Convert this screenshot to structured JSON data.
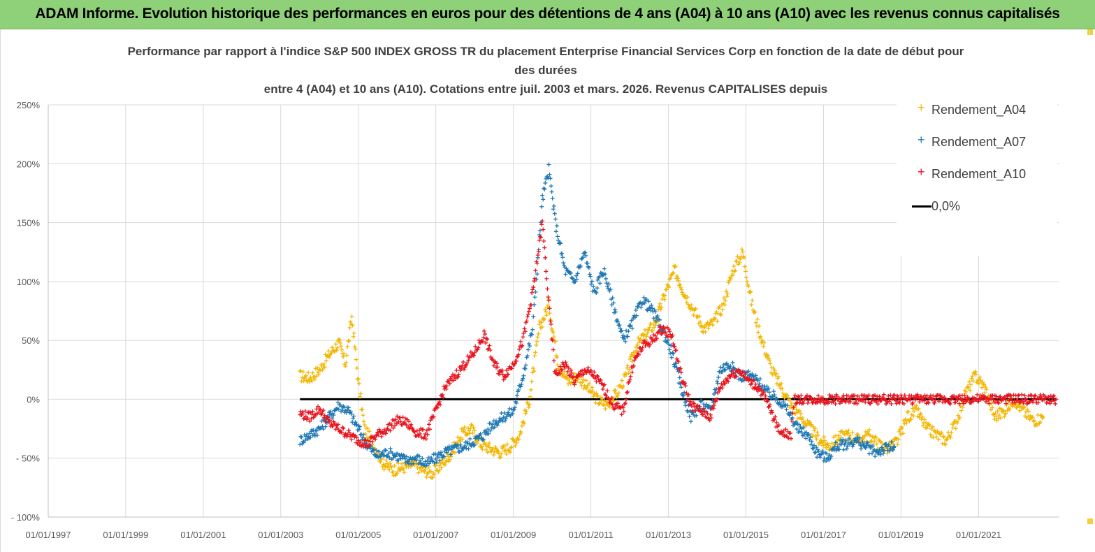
{
  "banner": {
    "title": "ADAM Informe. Evolution historique des performances en euros pour des détentions de 4 ans (A04) à 10 ans (A10) avec les revenus connus capitalisés"
  },
  "chart_data": {
    "type": "scatter",
    "title_lines": [
      "Performance par rapport à l'indice S&P 500 INDEX GROSS TR  du placement Enterprise Financial Services Corp en fonction de la date de début pour",
      "des durées",
      "entre 4 (A04) et 10 ans (A10). Cotations entre juil. 2003 et mars. 2026. Revenus CAPITALISES depuis"
    ],
    "xlabel": "",
    "ylabel": "",
    "x_range": [
      "1997-01-01",
      "2023-02-01"
    ],
    "x_ticks": [
      "01/01/1997",
      "01/01/1999",
      "01/01/2001",
      "01/01/2003",
      "01/01/2005",
      "01/01/2007",
      "01/01/2009",
      "01/01/2011",
      "01/01/2013",
      "01/01/2015",
      "01/01/2017",
      "01/01/2019",
      "01/01/2021"
    ],
    "ylim": [
      -100,
      250
    ],
    "y_ticks": [
      {
        "value": 250,
        "label": "250%"
      },
      {
        "value": 200,
        "label": "200%"
      },
      {
        "value": 150,
        "label": "150%"
      },
      {
        "value": 100,
        "label": "100%"
      },
      {
        "value": 50,
        "label": "50%"
      },
      {
        "value": 0,
        "label": "0%"
      },
      {
        "value": -50,
        "label": "- 50%"
      },
      {
        "value": -100,
        "label": "- 100%"
      }
    ],
    "grid": true,
    "legend_position": "top-right",
    "series": [
      {
        "name": "Rendement_A04",
        "color": "#f2b705",
        "marker": "plus",
        "points": [
          [
            "2003-07-01",
            20
          ],
          [
            "2003-10-01",
            18
          ],
          [
            "2004-01-01",
            25
          ],
          [
            "2004-04-01",
            38
          ],
          [
            "2004-07-01",
            48
          ],
          [
            "2004-09-01",
            30
          ],
          [
            "2004-11-01",
            70
          ],
          [
            "2005-01-01",
            15
          ],
          [
            "2005-03-01",
            -25
          ],
          [
            "2005-06-01",
            -40
          ],
          [
            "2005-09-01",
            -55
          ],
          [
            "2005-12-01",
            -60
          ],
          [
            "2006-03-01",
            -58
          ],
          [
            "2006-06-01",
            -55
          ],
          [
            "2006-09-01",
            -60
          ],
          [
            "2006-12-01",
            -63
          ],
          [
            "2007-03-01",
            -55
          ],
          [
            "2007-06-01",
            -45
          ],
          [
            "2007-09-01",
            -30
          ],
          [
            "2007-12-01",
            -25
          ],
          [
            "2008-03-01",
            -38
          ],
          [
            "2008-06-01",
            -42
          ],
          [
            "2008-09-01",
            -45
          ],
          [
            "2008-12-01",
            -40
          ],
          [
            "2009-03-01",
            -30
          ],
          [
            "2009-06-01",
            0
          ],
          [
            "2009-09-01",
            60
          ],
          [
            "2009-12-01",
            80
          ],
          [
            "2010-03-01",
            30
          ],
          [
            "2010-06-01",
            15
          ],
          [
            "2010-09-01",
            20
          ],
          [
            "2010-12-01",
            10
          ],
          [
            "2011-03-01",
            0
          ],
          [
            "2011-06-01",
            -5
          ],
          [
            "2011-09-01",
            5
          ],
          [
            "2011-12-01",
            20
          ],
          [
            "2012-03-01",
            45
          ],
          [
            "2012-06-01",
            55
          ],
          [
            "2012-09-01",
            65
          ],
          [
            "2012-12-01",
            90
          ],
          [
            "2013-03-01",
            110
          ],
          [
            "2013-06-01",
            90
          ],
          [
            "2013-09-01",
            75
          ],
          [
            "2013-12-01",
            60
          ],
          [
            "2014-03-01",
            65
          ],
          [
            "2014-06-01",
            80
          ],
          [
            "2014-09-01",
            110
          ],
          [
            "2014-12-01",
            125
          ],
          [
            "2015-03-01",
            80
          ],
          [
            "2015-06-01",
            50
          ],
          [
            "2015-09-01",
            25
          ],
          [
            "2015-12-01",
            10
          ],
          [
            "2016-03-01",
            -5
          ],
          [
            "2016-06-01",
            -15
          ],
          [
            "2016-09-01",
            -25
          ],
          [
            "2016-12-01",
            -35
          ],
          [
            "2017-03-01",
            -40
          ],
          [
            "2017-06-01",
            -32
          ],
          [
            "2017-09-01",
            -30
          ],
          [
            "2017-12-01",
            -35
          ],
          [
            "2018-03-01",
            -30
          ],
          [
            "2018-06-01",
            -38
          ],
          [
            "2018-09-01",
            -42
          ],
          [
            "2018-12-01",
            -35
          ],
          [
            "2019-03-01",
            -15
          ],
          [
            "2019-06-01",
            -10
          ],
          [
            "2019-09-01",
            -25
          ],
          [
            "2019-12-01",
            -30
          ],
          [
            "2020-03-01",
            -35
          ],
          [
            "2020-06-01",
            -20
          ],
          [
            "2020-09-01",
            5
          ],
          [
            "2020-12-01",
            20
          ],
          [
            "2021-03-01",
            10
          ],
          [
            "2021-06-01",
            -15
          ],
          [
            "2021-09-01",
            -10
          ],
          [
            "2021-12-01",
            0
          ],
          [
            "2022-03-01",
            -10
          ],
          [
            "2022-06-01",
            -18
          ],
          [
            "2022-09-01",
            -15
          ]
        ]
      },
      {
        "name": "Rendement_A07",
        "color": "#1f78b4",
        "marker": "plus",
        "points": [
          [
            "2003-07-01",
            -35
          ],
          [
            "2003-10-01",
            -30
          ],
          [
            "2004-01-01",
            -25
          ],
          [
            "2004-04-01",
            -15
          ],
          [
            "2004-07-01",
            -5
          ],
          [
            "2004-10-01",
            -10
          ],
          [
            "2005-01-01",
            -25
          ],
          [
            "2005-04-01",
            -40
          ],
          [
            "2005-07-01",
            -48
          ],
          [
            "2005-10-01",
            -45
          ],
          [
            "2006-01-01",
            -48
          ],
          [
            "2006-04-01",
            -52
          ],
          [
            "2006-07-01",
            -50
          ],
          [
            "2006-10-01",
            -55
          ],
          [
            "2007-01-01",
            -50
          ],
          [
            "2007-04-01",
            -45
          ],
          [
            "2007-07-01",
            -42
          ],
          [
            "2007-10-01",
            -40
          ],
          [
            "2008-01-01",
            -35
          ],
          [
            "2008-04-01",
            -30
          ],
          [
            "2008-07-01",
            -20
          ],
          [
            "2008-10-01",
            -15
          ],
          [
            "2009-01-01",
            -10
          ],
          [
            "2009-04-01",
            20
          ],
          [
            "2009-07-01",
            60
          ],
          [
            "2009-10-01",
            170
          ],
          [
            "2009-12-01",
            195
          ],
          [
            "2010-02-01",
            150
          ],
          [
            "2010-05-01",
            110
          ],
          [
            "2010-08-01",
            100
          ],
          [
            "2010-11-01",
            125
          ],
          [
            "2011-02-01",
            90
          ],
          [
            "2011-05-01",
            110
          ],
          [
            "2011-08-01",
            80
          ],
          [
            "2011-11-01",
            50
          ],
          [
            "2012-02-01",
            65
          ],
          [
            "2012-05-01",
            85
          ],
          [
            "2012-08-01",
            75
          ],
          [
            "2012-11-01",
            60
          ],
          [
            "2013-02-01",
            40
          ],
          [
            "2013-05-01",
            10
          ],
          [
            "2013-08-01",
            -15
          ],
          [
            "2013-11-01",
            -5
          ],
          [
            "2014-02-01",
            -10
          ],
          [
            "2014-05-01",
            25
          ],
          [
            "2014-08-01",
            30
          ],
          [
            "2014-11-01",
            20
          ],
          [
            "2015-02-01",
            20
          ],
          [
            "2015-05-01",
            15
          ],
          [
            "2015-08-01",
            5
          ],
          [
            "2015-11-01",
            0
          ],
          [
            "2016-02-01",
            -10
          ],
          [
            "2016-05-01",
            -25
          ],
          [
            "2016-08-01",
            -30
          ],
          [
            "2016-11-01",
            -45
          ],
          [
            "2017-02-01",
            -50
          ],
          [
            "2017-05-01",
            -40
          ],
          [
            "2017-08-01",
            -38
          ],
          [
            "2017-11-01",
            -35
          ],
          [
            "2018-02-01",
            -40
          ],
          [
            "2018-05-01",
            -45
          ],
          [
            "2018-08-01",
            -42
          ],
          [
            "2018-11-01",
            -40
          ]
        ]
      },
      {
        "name": "Rendement_A10",
        "color": "#e8141e",
        "marker": "plus",
        "points": [
          [
            "2003-07-01",
            -12
          ],
          [
            "2003-10-01",
            -15
          ],
          [
            "2004-01-01",
            -8
          ],
          [
            "2004-04-01",
            -20
          ],
          [
            "2004-07-01",
            -25
          ],
          [
            "2004-10-01",
            -30
          ],
          [
            "2005-01-01",
            -35
          ],
          [
            "2005-04-01",
            -38
          ],
          [
            "2005-07-01",
            -30
          ],
          [
            "2005-10-01",
            -25
          ],
          [
            "2006-01-01",
            -18
          ],
          [
            "2006-04-01",
            -20
          ],
          [
            "2006-07-01",
            -28
          ],
          [
            "2006-10-01",
            -30
          ],
          [
            "2007-01-01",
            -10
          ],
          [
            "2007-04-01",
            10
          ],
          [
            "2007-07-01",
            20
          ],
          [
            "2007-10-01",
            30
          ],
          [
            "2008-01-01",
            40
          ],
          [
            "2008-04-01",
            55
          ],
          [
            "2008-07-01",
            30
          ],
          [
            "2008-10-01",
            20
          ],
          [
            "2009-01-01",
            30
          ],
          [
            "2009-04-01",
            50
          ],
          [
            "2009-07-01",
            90
          ],
          [
            "2009-10-01",
            150
          ],
          [
            "2009-12-01",
            80
          ],
          [
            "2010-02-01",
            20
          ],
          [
            "2010-05-01",
            30
          ],
          [
            "2010-08-01",
            15
          ],
          [
            "2010-11-01",
            25
          ],
          [
            "2011-02-01",
            20
          ],
          [
            "2011-05-01",
            10
          ],
          [
            "2011-08-01",
            -5
          ],
          [
            "2011-11-01",
            -10
          ],
          [
            "2012-02-01",
            30
          ],
          [
            "2012-05-01",
            45
          ],
          [
            "2012-08-01",
            50
          ],
          [
            "2012-11-01",
            60
          ],
          [
            "2013-02-01",
            55
          ],
          [
            "2013-05-01",
            20
          ],
          [
            "2013-08-01",
            -5
          ],
          [
            "2013-11-01",
            -10
          ],
          [
            "2014-02-01",
            -15
          ],
          [
            "2014-05-01",
            10
          ],
          [
            "2014-08-01",
            20
          ],
          [
            "2014-11-01",
            25
          ],
          [
            "2015-02-01",
            15
          ],
          [
            "2015-05-01",
            10
          ],
          [
            "2015-08-01",
            -5
          ],
          [
            "2015-11-01",
            -25
          ],
          [
            "2016-02-01",
            -30
          ],
          [
            "2016-03-01",
            -30
          ],
          [
            "2016-04-01",
            0
          ],
          [
            "2017-01-01",
            0
          ],
          [
            "2018-01-01",
            0
          ],
          [
            "2019-01-01",
            0
          ],
          [
            "2020-01-01",
            0
          ],
          [
            "2021-01-01",
            0
          ],
          [
            "2022-01-01",
            0
          ],
          [
            "2023-01-01",
            0
          ]
        ]
      },
      {
        "name": "0,0%",
        "color": "#000000",
        "marker": "line",
        "points": [
          [
            "2003-07-01",
            0
          ],
          [
            "2023-01-01",
            0
          ]
        ]
      }
    ]
  }
}
